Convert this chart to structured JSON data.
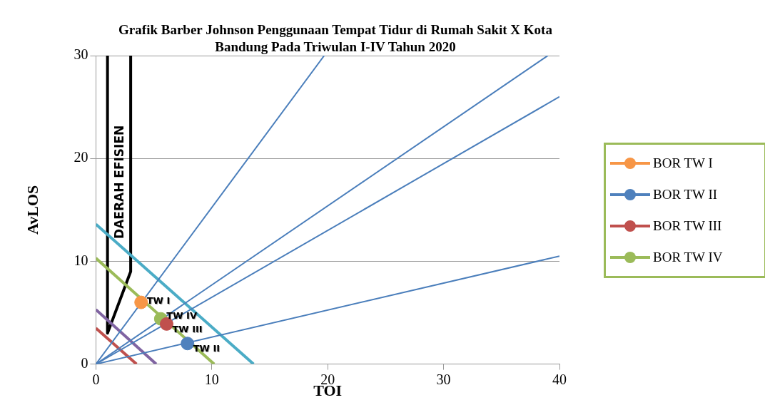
{
  "chart_data": {
    "type": "scatter",
    "title": "Grafik Barber Johnson Penggunaan Tempat Tidur di Rumah Sakit X Kota Bandung Pada Triwulan I-IV Tahun 2020",
    "xlabel": "TOI",
    "ylabel": "AvLOS",
    "xlim": [
      0,
      40
    ],
    "ylim": [
      0,
      30
    ],
    "xticks": [
      0,
      10,
      20,
      30,
      40
    ],
    "yticks": [
      0,
      10,
      20,
      30
    ],
    "grid": "y",
    "legend": "right",
    "series": [
      {
        "type": "line",
        "color": "#4a7ebb",
        "x": [
          0,
          19.7
        ],
        "values": [
          0,
          30
        ]
      },
      {
        "type": "line",
        "color": "#4a7ebb",
        "x": [
          0,
          39
        ],
        "values": [
          0,
          30
        ]
      },
      {
        "type": "line",
        "color": "#4a7ebb",
        "x": [
          0,
          40
        ],
        "values": [
          0,
          26
        ]
      },
      {
        "type": "line",
        "color": "#4a7ebb",
        "x": [
          0,
          40
        ],
        "values": [
          0,
          10.5
        ]
      },
      {
        "type": "line",
        "color": "#4bacc6",
        "x": [
          0,
          13.6
        ],
        "values": [
          13.6,
          0
        ]
      },
      {
        "type": "line",
        "color": "#9bbb59",
        "x": [
          0,
          10.2
        ],
        "values": [
          10.3,
          0
        ]
      },
      {
        "type": "line",
        "color": "#8064a2",
        "x": [
          0,
          5.2
        ],
        "values": [
          5.3,
          0
        ]
      },
      {
        "type": "line",
        "color": "#c0504d",
        "x": [
          0,
          3.5
        ],
        "values": [
          3.5,
          0
        ]
      },
      {
        "type": "line",
        "color": "#000000",
        "x": [
          1,
          1,
          3,
          3
        ],
        "values": [
          30,
          3,
          9,
          30
        ]
      },
      {
        "name": "BOR TW I",
        "marker": "circle",
        "color": "#f79646",
        "x": [
          3.9
        ],
        "values": [
          6
        ]
      },
      {
        "name": "BOR TW II",
        "marker": "circle",
        "color": "#4f81bd",
        "x": [
          7.9
        ],
        "values": [
          2
        ]
      },
      {
        "name": "BOR TW III",
        "marker": "circle",
        "color": "#c0504d",
        "x": [
          6.1
        ],
        "values": [
          3.9
        ]
      },
      {
        "name": "BOR TW IV",
        "marker": "circle",
        "color": "#9bbb59",
        "x": [
          5.6
        ],
        "values": [
          4.4
        ]
      }
    ],
    "annotations": [
      {
        "text": "TW I",
        "x": 3.9,
        "y": 6
      },
      {
        "text": "TW II",
        "x": 7.9,
        "y": 2
      },
      {
        "text": "TW III",
        "x": 6.1,
        "y": 3.9
      },
      {
        "text": "TW IV",
        "x": 5.6,
        "y": 4.4
      },
      "DAERAH EFISIEN"
    ]
  }
}
